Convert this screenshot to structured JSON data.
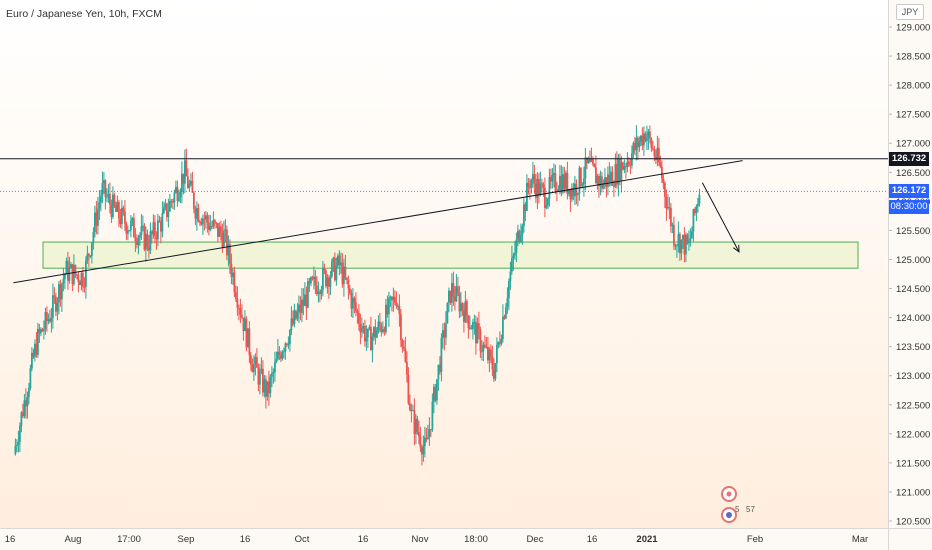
{
  "header": {
    "title": "Euro / Japanese Yen, 10h, FXCM",
    "currency": "JPY"
  },
  "colors": {
    "up": "#26a69a",
    "down": "#ef5350",
    "line": "#131722",
    "zone_fill": "#eef3d2",
    "zone_stroke": "#4caf50",
    "current_price": "#2962ff",
    "resistance_tag": "#131722"
  },
  "price_labels": {
    "resistance": "126.732",
    "current": "126.172",
    "countdown": "08:30:00"
  },
  "events": {
    "badge_a": "5",
    "badge_b": "57"
  },
  "chart_data": {
    "type": "candlestick",
    "title": "Euro / Japanese Yen, 10h, FXCM",
    "y_ticks": [
      "129.000",
      "128.500",
      "128.000",
      "127.500",
      "127.000",
      "126.500",
      "126.000",
      "125.500",
      "125.000",
      "124.500",
      "124.000",
      "123.500",
      "123.000",
      "122.500",
      "122.000",
      "121.500",
      "121.000",
      "120.500"
    ],
    "x_ticks": [
      "16",
      "Aug",
      "17:00",
      "Sep",
      "16",
      "Oct",
      "16",
      "Nov",
      "18:00",
      "Dec",
      "16",
      "2021",
      "Feb",
      "Mar"
    ],
    "ylim": [
      120.4,
      129.2
    ],
    "grid": false,
    "series": [
      {
        "name": "EURJPY",
        "x": [
          "Jul 16",
          "Jul 22",
          "Jul 26",
          "Jul 30",
          "Aug 4",
          "Aug 9",
          "Aug 13",
          "Aug 18",
          "Aug 22",
          "Aug 26",
          "Sep 1",
          "Sep 4",
          "Sep 8",
          "Sep 12",
          "Sep 16",
          "Sep 20",
          "Sep 24",
          "Sep 28",
          "Oct 2",
          "Oct 6",
          "Oct 10",
          "Oct 14",
          "Oct 18",
          "Oct 22",
          "Oct 26",
          "Oct 30",
          "Nov 3",
          "Nov 7",
          "Nov 10",
          "Nov 14",
          "Nov 18",
          "Nov 22",
          "Nov 26",
          "Nov 30",
          "Dec 2",
          "Dec 6",
          "Dec 10",
          "Dec 14",
          "Dec 18",
          "Dec 22",
          "Dec 26",
          "Dec 30",
          "Jan 3",
          "Jan 7",
          "Jan 11",
          "Jan 15",
          "Jan 19",
          "Jan 22"
        ],
        "close": [
          121.8,
          123.6,
          124.1,
          124.8,
          124.7,
          126.2,
          125.8,
          125.5,
          125.3,
          125.7,
          126.5,
          125.9,
          125.6,
          125.4,
          124.3,
          123.2,
          122.7,
          123.5,
          124.0,
          124.5,
          124.7,
          124.9,
          124.2,
          123.6,
          123.9,
          124.4,
          122.3,
          121.7,
          122.9,
          124.5,
          124.1,
          123.6,
          123.1,
          124.6,
          125.2,
          126.4,
          126.1,
          126.4,
          126.2,
          126.6,
          126.3,
          126.5,
          126.8,
          127.2,
          126.6,
          125.4,
          125.2,
          126.2
        ]
      }
    ],
    "annotations": {
      "support_zone": [
        124.85,
        125.3
      ],
      "resistance_level": 126.732,
      "current_price": 126.172,
      "trendline": [
        {
          "x": "Jul 16",
          "y": 124.6
        },
        {
          "x": "Feb 3",
          "y": 126.7
        }
      ],
      "projection": [
        {
          "x": "Jan 22",
          "y": 126.32
        },
        {
          "x": "Jan 28",
          "y": 125.2
        }
      ]
    }
  }
}
